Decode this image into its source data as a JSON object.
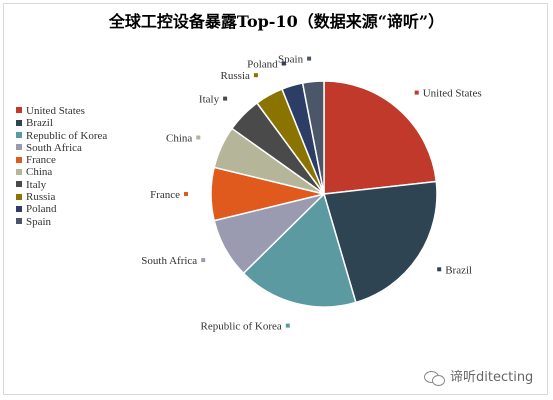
{
  "chart_data": {
    "type": "pie",
    "title": "全球工控设备暴露Top-10（数据来源“谛听”）",
    "categories": [
      "United States",
      "Brazil",
      "Republic of Korea",
      "South Africa",
      "France",
      "China",
      "Italy",
      "Russia",
      "Poland",
      "Spain"
    ],
    "values": [
      23,
      22,
      17,
      8.5,
      7.5,
      6,
      5,
      4,
      3,
      3
    ],
    "colors": [
      "#c0392b",
      "#2e4453",
      "#5b9aa0",
      "#9a9bb0",
      "#e05a1e",
      "#b5b59a",
      "#4a4a4a",
      "#8b7300",
      "#2c3e66",
      "#4b5668"
    ],
    "legend_position": "left"
  },
  "watermark": {
    "icon": "wechat-icon",
    "text": "谛听ditecting"
  }
}
